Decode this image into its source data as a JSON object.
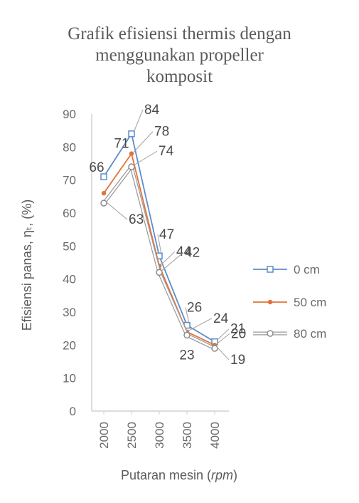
{
  "chart_data": {
    "type": "line",
    "title_lines": [
      "Grafik efisiensi thermis dengan",
      "menggunakan propeller",
      "komposit"
    ],
    "xlabel": "Putaran mesin (",
    "xlabel_italic": "rpm",
    "xlabel_end": ")",
    "ylabel": "Efisiensi panas, ηₜ, (%)",
    "categories": [
      "2000",
      "2500",
      "3000",
      "3500",
      "4000"
    ],
    "ylim": [
      0,
      90
    ],
    "yticks": [
      "0",
      "10",
      "20",
      "30",
      "40",
      "50",
      "60",
      "70",
      "80",
      "90"
    ],
    "legend_position": "right",
    "series": [
      {
        "name": "0 cm",
        "values": [
          71,
          84,
          47,
          26,
          21
        ],
        "color": "#5b8ec9",
        "marker": "square",
        "labels": [
          "",
          "84",
          "47",
          "26",
          "21"
        ]
      },
      {
        "name": "50 cm",
        "values": [
          66,
          78,
          44,
          24,
          20
        ],
        "color": "#e0733a",
        "marker": "dot",
        "labels": [
          "66",
          "78",
          "44",
          "24",
          "20"
        ]
      },
      {
        "name": "80 cm",
        "values": [
          63,
          74,
          42,
          23,
          19
        ],
        "color": "#9a9a9a",
        "marker": "circle",
        "labels": [
          "63",
          "74",
          "42",
          "23",
          "19"
        ]
      }
    ],
    "extra_labels": [
      "71"
    ]
  }
}
